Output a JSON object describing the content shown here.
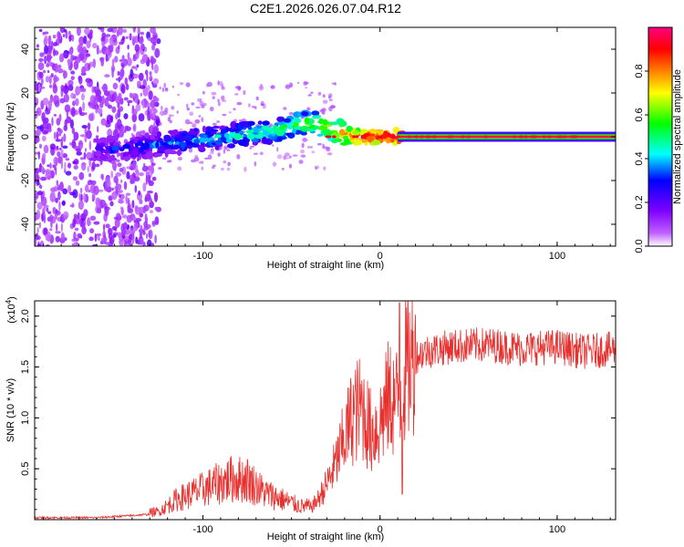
{
  "page": {
    "title": "C2E1.2026.026.07.04.R12"
  },
  "chart_data": [
    {
      "type": "heatmap",
      "name": "spectrogram",
      "title": "C2E1.2026.026.07.04.R12",
      "xlabel": "Height of straight line (km)",
      "ylabel": "Frequency (Hz)",
      "xlim": [
        -195,
        133
      ],
      "ylim": [
        -50,
        50
      ],
      "xticks": [
        -100,
        0,
        100
      ],
      "yticks": [
        -40,
        -20,
        0,
        20,
        40
      ],
      "xtick_labels": [
        "-100",
        "0",
        "100"
      ],
      "ytick_labels": [
        "-40",
        "-20",
        "0",
        "20",
        "40"
      ],
      "ridge": {
        "x": [
          -160,
          -140,
          -120,
          -100,
          -80,
          -60,
          -45,
          -35,
          -25,
          -15,
          -5,
          5,
          15,
          40,
          80,
          133
        ],
        "freq": [
          -6,
          -5,
          -3,
          -1,
          1,
          3,
          6,
          6,
          3,
          0,
          0,
          0,
          0,
          0,
          0,
          0
        ],
        "amplitude": [
          0.25,
          0.3,
          0.35,
          0.4,
          0.45,
          0.5,
          0.55,
          0.6,
          0.7,
          0.85,
          0.9,
          0.95,
          0.98,
          0.98,
          0.98,
          0.98
        ]
      },
      "colorbar": {
        "label": "Normalized spectral amplitude",
        "ticks": [
          0.0,
          0.2,
          0.4,
          0.6,
          0.8
        ],
        "tick_labels": [
          "0.0",
          "0.2",
          "0.4",
          "0.6",
          "0.8"
        ],
        "range": [
          0,
          1
        ],
        "colors": [
          "#ffffff",
          "#8000ff",
          "#0000ff",
          "#00ffff",
          "#00ff00",
          "#ffff00",
          "#ff8000",
          "#ff0000",
          "#ff0080"
        ]
      }
    },
    {
      "type": "line",
      "name": "snr",
      "xlabel": "Height of straight line (km)",
      "ylabel": "SNR (10 * v/v)",
      "y_exponent": "(x10",
      "y_exponent_power": "4",
      "y_exponent_close": ")",
      "xlim": [
        -195,
        133
      ],
      "ylim": [
        0,
        2.15
      ],
      "xticks": [
        -100,
        0,
        100
      ],
      "yticks": [
        0.5,
        1.0,
        1.5,
        2.0
      ],
      "xtick_labels": [
        "-100",
        "0",
        "100"
      ],
      "ytick_labels": [
        "0.5",
        "1.0",
        "1.5",
        "2.0"
      ],
      "series_color": "#e8302e",
      "anchors": {
        "x": [
          -195,
          -160,
          -140,
          -125,
          -115,
          -105,
          -95,
          -85,
          -75,
          -65,
          -55,
          -45,
          -40,
          -35,
          -30,
          -25,
          -20,
          -15,
          -10,
          -5,
          0,
          5,
          10,
          15,
          20,
          25,
          40,
          60,
          80,
          100,
          115,
          133
        ],
        "y": [
          0.02,
          0.02,
          0.04,
          0.06,
          0.15,
          0.2,
          0.25,
          0.3,
          0.3,
          0.2,
          0.15,
          0.1,
          0.1,
          0.2,
          0.35,
          0.55,
          0.8,
          1.05,
          1.1,
          0.85,
          0.95,
          1.2,
          1.15,
          1.5,
          1.6,
          1.65,
          1.7,
          1.72,
          1.68,
          1.7,
          1.65,
          1.68
        ]
      }
    }
  ]
}
